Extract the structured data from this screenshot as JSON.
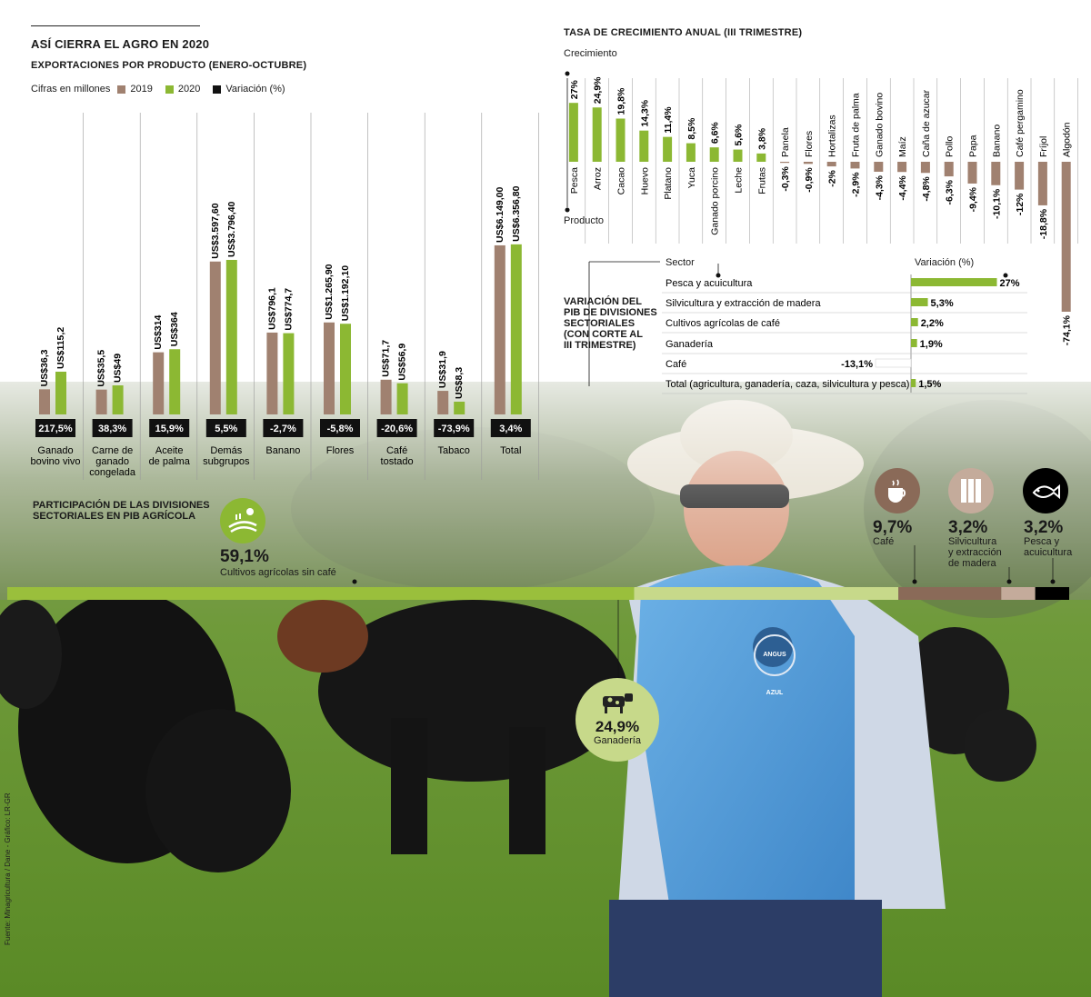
{
  "header": {
    "title": "ASÍ CIERRA EL AGRO EN 2020",
    "subtitle": "EXPORTACIONES POR PRODUCTO (ENERO-OCTUBRE)",
    "units_note": "Cifras en millones",
    "legend": [
      {
        "label": "2019",
        "color": "#a08170"
      },
      {
        "label": "2020",
        "color": "#8cb833"
      },
      {
        "label": "Variación (%)",
        "color": "#111111"
      }
    ]
  },
  "growth_section": {
    "title": "TASA DE CRECIMIENTO ANUAL (III TRIMESTRE)",
    "axis_top": "Crecimiento",
    "axis_bottom": "Producto"
  },
  "gdp_section": {
    "title_lines": [
      "VARIACIÓN DEL",
      "PIB DE DIVISIONES",
      "SECTORIALES",
      "(CON CORTE AL",
      "III TRIMESTRE)"
    ],
    "col_sector": "Sector",
    "col_var": "Variación (%)"
  },
  "participation": {
    "title_lines": [
      "PARTICIPACIÓN DE LAS DIVISIONES",
      "SECTORIALES EN PIB AGRÍCOLA"
    ],
    "main_pct": "59,1%",
    "main_label": "Cultivos agrícolas sin café",
    "livestock_pct": "24,9%",
    "livestock_label": "Ganadería",
    "items": [
      {
        "pct": "9,7%",
        "label_lines": [
          "Café"
        ],
        "icon": "coffee-cup-icon"
      },
      {
        "pct": "3,2%",
        "label_lines": [
          "Silvicultura",
          "y extracción",
          "de madera"
        ],
        "icon": "wood-planks-icon"
      },
      {
        "pct": "3,2%",
        "label_lines": [
          "Pesca y",
          "acuicultura"
        ],
        "icon": "fish-icon"
      }
    ],
    "icons": {
      "crops": "crop-field-icon",
      "livestock": "cow-icon"
    }
  },
  "photo": {
    "logo_text": "ANGUS AZUL"
  },
  "source": "Fuente: Minagricultura / Dane - Gráfico: LR-GR",
  "chart_data": [
    {
      "type": "bar",
      "title": "EXPORTACIONES POR PRODUCTO (ENERO-OCTUBRE)",
      "ylabel": "Cifras en millones",
      "categories": [
        [
          "Ganado",
          "bovino vivo"
        ],
        [
          "Carne de",
          "ganado",
          "congelada"
        ],
        [
          "Aceite",
          "de palma"
        ],
        [
          "Demás",
          "subgrupos"
        ],
        [
          "Banano"
        ],
        [
          "Flores"
        ],
        [
          "Café",
          "tostado"
        ],
        [
          "Tabaco"
        ],
        [
          "Total"
        ]
      ],
      "series": [
        {
          "name": "2019",
          "values": [
            36.3,
            35.5,
            314,
            3597.6,
            796.1,
            1265.9,
            71.7,
            31.9,
            6149.0
          ],
          "labels": [
            "US$36,3",
            "US$35,5",
            "US$314",
            "US$3.597,60",
            "US$796,1",
            "US$1.265,90",
            "US$71,7",
            "US$31,9",
            "US$6.149,00"
          ],
          "color": "#a08170"
        },
        {
          "name": "2020",
          "values": [
            115.2,
            49,
            364,
            3796.4,
            774.7,
            1192.1,
            56.9,
            8.3,
            6356.8
          ],
          "labels": [
            "US$115,2",
            "US$49",
            "US$364",
            "US$3.796,40",
            "US$774,7",
            "US$1.192,10",
            "US$56,9",
            "US$8,3",
            "US$6.356,80"
          ],
          "color": "#8cb833"
        }
      ],
      "variation": [
        "217,5%",
        "38,3%",
        "15,9%",
        "5,5%",
        "-2,7%",
        "-5,8%",
        "-20,6%",
        "-73,9%",
        "3,4%"
      ]
    },
    {
      "type": "bar",
      "title": "TASA DE CRECIMIENTO ANUAL (III TRIMESTRE)",
      "ylabel": "Crecimiento",
      "xlabel": "Producto",
      "categories": [
        "Pesca",
        "Arroz",
        "Cacao",
        "Huevo",
        "Platano",
        "Yuca",
        "Ganado porcino",
        "Leche",
        "Frutas",
        "Panela",
        "Flores",
        "Hortalizas",
        "Fruta de palma",
        "Ganado bovino",
        "Maíz",
        "Caña de azucar",
        "Pollo",
        "Papa",
        "Banano",
        "Café pergamino",
        "Fríjol",
        "Algodón"
      ],
      "values": [
        27,
        24.9,
        19.8,
        14.3,
        11.4,
        8.5,
        6.6,
        5.6,
        3.8,
        -0.3,
        -0.9,
        -2,
        -2.9,
        -4.3,
        -4.4,
        -4.8,
        -6.3,
        -9.4,
        -10.1,
        -12,
        -18.8,
        -74.1
      ],
      "labels": [
        "27%",
        "24,9%",
        "19,8%",
        "14,3%",
        "11,4%",
        "8,5%",
        "6,6%",
        "5,6%",
        "3,8%",
        "-0,3%",
        "-0,9%",
        "-2%",
        "-2,9%",
        "-4,3%",
        "-4,4%",
        "-4,8%",
        "-6,3%",
        "-9,4%",
        "-10,1%",
        "-12%",
        "-18,8%",
        "-74,1%"
      ],
      "colors": {
        "positive": "#8cb833",
        "negative": "#a08170"
      }
    },
    {
      "type": "bar",
      "title": "VARIACIÓN DEL PIB DE DIVISIONES SECTORIALES (CON CORTE AL III TRIMESTRE)",
      "categories": [
        "Pesca y acuicultura",
        "Silvicultura y extracción de madera",
        "Cultivos agrícolas de café",
        "Ganadería",
        "Café",
        "Total (agricultura, ganadería, caza, silvicultura y pesca)"
      ],
      "values": [
        27,
        5.3,
        2.2,
        1.9,
        -13.1,
        1.5
      ],
      "labels": [
        "27%",
        "5,3%",
        "2,2%",
        "1,9%",
        "-13,1%",
        "1,5%"
      ]
    },
    {
      "type": "bar",
      "title": "PARTICIPACIÓN DE LAS DIVISIONES SECTORIALES EN PIB AGRÍCOLA",
      "categories": [
        "Cultivos agrícolas sin café",
        "Ganadería",
        "Café",
        "Silvicultura y extracción de madera",
        "Pesca y acuicultura"
      ],
      "values": [
        59.1,
        24.9,
        9.7,
        3.2,
        3.2
      ],
      "colors": [
        "#9abf3c",
        "#c7d98a",
        "#8a6a58",
        "#c4ab9b",
        "#000000"
      ]
    }
  ]
}
